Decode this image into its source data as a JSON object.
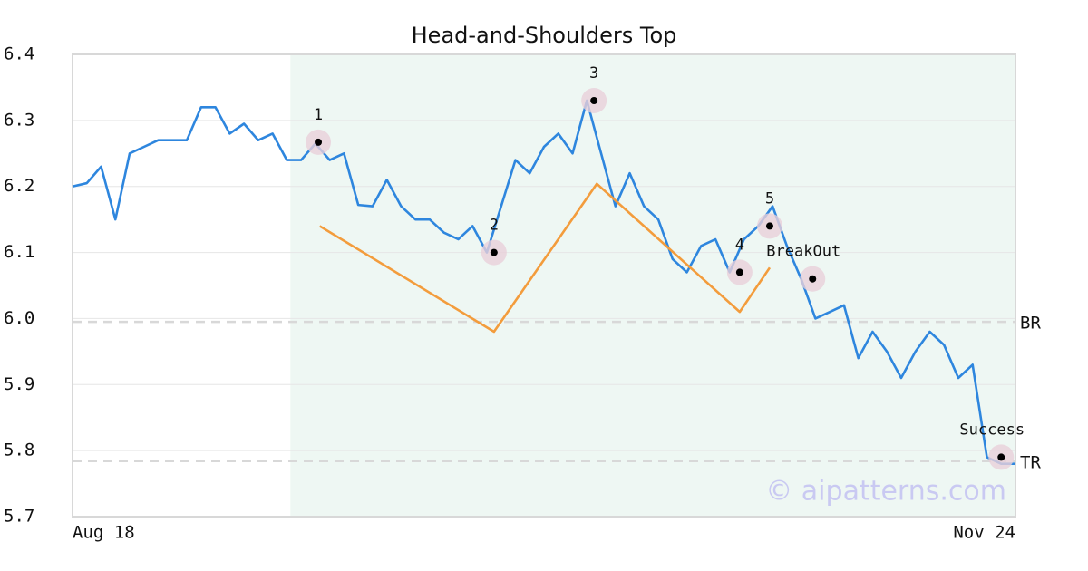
{
  "chart_data": {
    "type": "line",
    "title": "Head-and-Shoulders Top",
    "watermark": "© aipatterns.com",
    "categories": [
      "Aug 18",
      null,
      null,
      null,
      null,
      null,
      null,
      null,
      null,
      null,
      null,
      null,
      null,
      null,
      null,
      null,
      null,
      null,
      null,
      null,
      null,
      null,
      null,
      null,
      null,
      null,
      null,
      null,
      null,
      null,
      null,
      null,
      null,
      null,
      null,
      null,
      null,
      null,
      null,
      null,
      null,
      null,
      null,
      null,
      null,
      null,
      null,
      null,
      null,
      null,
      null,
      null,
      null,
      null,
      null,
      null,
      null,
      null,
      null,
      null,
      null,
      null,
      null,
      null,
      null,
      null,
      "Nov 24"
    ],
    "xlim": [
      0,
      66
    ],
    "ylim": [
      5.7,
      6.4
    ],
    "yticks": [
      5.7,
      5.8,
      5.9,
      {
        "value": 6,
        "label": "6.0"
      },
      6.1,
      6.2,
      6.3,
      6.4
    ],
    "grid": true,
    "series": [
      {
        "color": "#2e86de",
        "values": [
          6.2,
          6.205,
          6.23,
          6.15,
          6.25,
          6.26,
          6.27,
          6.27,
          6.27,
          6.32,
          6.32,
          6.28,
          6.295,
          6.27,
          6.28,
          6.24,
          6.24,
          6.265,
          6.24,
          6.25,
          6.172,
          6.17,
          6.21,
          6.17,
          6.15,
          6.15,
          6.13,
          6.12,
          6.14,
          6.1,
          6.17,
          6.24,
          6.22,
          6.26,
          6.28,
          6.25,
          6.33,
          6.25,
          6.17,
          6.22,
          6.17,
          6.15,
          6.09,
          6.07,
          6.11,
          6.12,
          6.07,
          6.12,
          6.14,
          6.17,
          6.11,
          6.06,
          6.0,
          6.01,
          6.02,
          5.94,
          5.98,
          5.95,
          5.91,
          5.95,
          5.98,
          5.96,
          5.91,
          5.93,
          5.79,
          5.78,
          5.78
        ]
      },
      {
        "color": "#f39c3c",
        "x": [
          17.3,
          29.5,
          36.7,
          46.7,
          48.8
        ],
        "values": [
          6.14,
          5.98,
          6.204,
          6.01,
          6.077
        ]
      }
    ],
    "shaded_region": {
      "x": [
        15.25,
        66
      ],
      "color": "#eef7f3"
    },
    "reference_lines": [
      {
        "name": "BR",
        "value": 5.995
      },
      {
        "name": "TR",
        "value": 5.784
      }
    ],
    "annotations": [
      {
        "label": "1",
        "x": 17.2,
        "y": 6.267
      },
      {
        "label": "2",
        "x": 29.5,
        "y": 6.1
      },
      {
        "label": "3",
        "x": 36.5,
        "y": 6.33
      },
      {
        "label": "4",
        "x": 46.7,
        "y": 6.07
      },
      {
        "label": "5",
        "x": 48.8,
        "y": 6.14
      },
      {
        "label": "BreakOut",
        "x": 51.8,
        "y": 6.06
      },
      {
        "label": "Success",
        "x": 65,
        "y": 5.79
      }
    ]
  }
}
